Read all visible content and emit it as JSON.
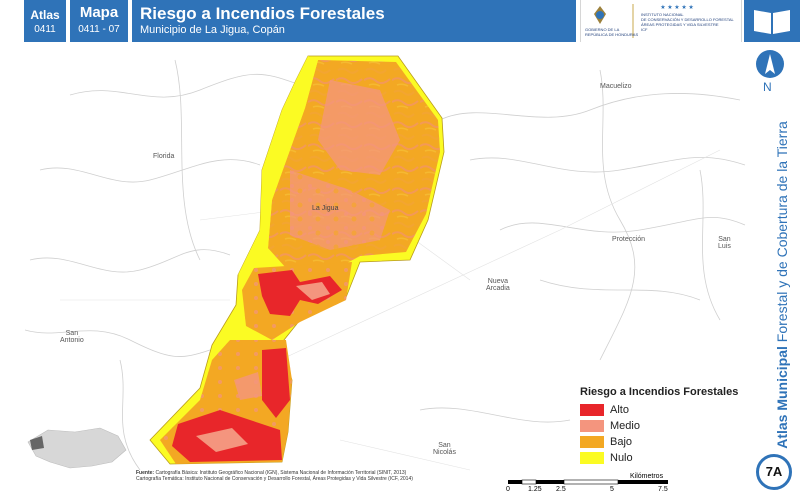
{
  "header": {
    "atlas_label": "Atlas",
    "atlas_code": "0411",
    "mapa_label": "Mapa",
    "mapa_code": "0411 - 07",
    "title": "Riesgo a Incendios Forestales",
    "subtitle": "Municipio de La Jigua, Copán"
  },
  "logos": {
    "gov_line1": "GOBIERNO DE LA",
    "gov_line2": "REPÚBLICA DE HONDURAS",
    "icf_line1": "INSTITUTO NACIONAL",
    "icf_line2": "DE CONSERVACIÓN Y DESARROLLO FORESTAL",
    "icf_line3": "ÁREAS PROTEGIDAS Y VIDA SILVESTRE",
    "icf_line4": "ICF"
  },
  "map": {
    "places": {
      "macuelizo": "Macuelizo",
      "florida": "Florida",
      "la_jigua": "La Jigua",
      "proteccion": "Protección",
      "san_luis": "San\nLuis",
      "nueva_arcadia": "Nueva\nArcadia",
      "san_antonio": "San\nAntonio",
      "san_nicolas": "San\nNicolás"
    },
    "legend": {
      "title": "Riesgo a Incendios Forestales",
      "items": [
        {
          "label": "Alto",
          "color": "#e8262a"
        },
        {
          "label": "Medio",
          "color": "#f4957e"
        },
        {
          "label": "Bajo",
          "color": "#f3a823"
        },
        {
          "label": "Nulo",
          "color": "#fbfb23"
        }
      ]
    },
    "north_label": "N",
    "scale": {
      "ticks": [
        "0",
        "1.25",
        "2.5",
        "5",
        "7.5"
      ],
      "unit": "Kilómetros"
    }
  },
  "source": {
    "label": "Fuente:",
    "line1": "Cartografía Básica: Instituto Geográfico Nacional (IGN), Sistema Nacional de Información Territorial (SINIT, 2013)",
    "line2": "Cartografía Temática: Instituto Nacional de Conservación y Desarrollo Forestal, Áreas Protegidas y Vida Silvestre (ICF, 2014)"
  },
  "side": {
    "title_bold": "Atlas Municipal",
    "title_rest": " Forestal y de Cobertura de la Tierra",
    "badge": "7A"
  }
}
